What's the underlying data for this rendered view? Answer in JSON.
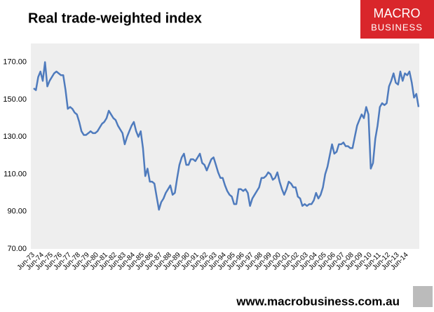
{
  "chart_data": {
    "type": "line",
    "title": "Real trade-weighted index",
    "categories": [
      "Jun-73",
      null,
      null,
      null,
      "Jun-74",
      null,
      null,
      null,
      "Jun-75",
      null,
      null,
      null,
      "Jun-76",
      null,
      null,
      null,
      "Jun-77",
      null,
      null,
      null,
      "Jun-78",
      null,
      null,
      null,
      "Jun-79",
      null,
      null,
      null,
      "Jun-80",
      null,
      null,
      null,
      "Jun-81",
      null,
      null,
      null,
      "Jun-82",
      null,
      null,
      null,
      "Jun-83",
      null,
      null,
      null,
      "Jun-84",
      null,
      null,
      null,
      "Jun-85",
      null,
      null,
      null,
      "Jun-86",
      null,
      null,
      null,
      "Jun-87",
      null,
      null,
      null,
      "Jun-88",
      null,
      null,
      null,
      "Jun-89",
      null,
      null,
      null,
      "Jun-90",
      null,
      null,
      null,
      "Jun-91",
      null,
      null,
      null,
      "Jun-92",
      null,
      null,
      null,
      "Jun-93",
      null,
      null,
      null,
      "Jun-94",
      null,
      null,
      null,
      "Jun-95",
      null,
      null,
      null,
      "Jun-96",
      null,
      null,
      null,
      "Jun-97",
      null,
      null,
      null,
      "Jun-98",
      null,
      null,
      null,
      "Jun-99",
      null,
      null,
      null,
      "Jun-00",
      null,
      null,
      null,
      "Jun-01",
      null,
      null,
      null,
      "Jun-02",
      null,
      null,
      null,
      "Jun-03",
      null,
      null,
      null,
      "Jun-04",
      null,
      null,
      null,
      "Jun-05",
      null,
      null,
      null,
      "Jun-06",
      null,
      null,
      null,
      "Jun-07",
      null,
      null,
      null,
      "Jun-08",
      null,
      null,
      null,
      "Jun-09",
      null,
      null,
      null,
      "Jun-10",
      null,
      null,
      null,
      "Jun-11",
      null,
      null,
      null,
      "Jun-12",
      null,
      null,
      null,
      "Jun-13",
      null,
      null,
      null,
      "Jun-14",
      null,
      null,
      null,
      null,
      null
    ],
    "values": [
      156,
      155,
      162,
      165,
      160,
      170,
      157,
      160,
      162,
      164,
      165,
      164,
      163,
      163,
      155,
      145,
      146,
      145,
      143,
      142,
      138,
      133,
      131,
      131,
      132,
      133,
      132,
      132,
      133,
      135,
      137,
      138,
      140,
      144,
      142,
      140,
      139,
      136,
      134,
      132,
      126,
      130,
      133,
      136,
      138,
      133,
      130,
      133,
      124,
      109,
      113,
      106,
      106,
      105,
      98,
      91,
      95,
      97,
      100,
      102,
      104,
      99,
      100,
      108,
      115,
      119,
      121,
      115,
      115,
      118,
      118,
      117,
      119,
      121,
      116,
      115,
      112,
      115,
      118,
      119,
      115,
      111,
      108,
      108,
      104,
      101,
      99,
      98,
      94,
      94,
      102,
      102,
      101,
      102,
      100,
      93,
      97,
      99,
      101,
      103,
      108,
      108,
      109,
      111,
      110,
      107,
      108,
      111,
      106,
      102,
      99,
      102,
      106,
      105,
      103,
      103,
      98,
      97,
      93,
      94,
      93,
      94,
      94,
      96,
      100,
      97,
      99,
      103,
      110,
      114,
      120,
      126,
      121,
      122,
      126,
      126,
      127,
      125,
      125,
      124,
      124,
      130,
      136,
      139,
      142,
      140,
      146,
      142,
      113,
      116,
      129,
      136,
      146,
      148,
      147,
      148,
      157,
      160,
      164,
      159,
      158,
      165,
      160,
      164,
      163,
      165,
      159,
      151,
      153,
      146
    ],
    "color": "#4f7bbd",
    "ylim": [
      70,
      180
    ],
    "yticks": [
      {
        "value": 70,
        "label": "70.00"
      },
      {
        "value": 90,
        "label": "90.00"
      },
      {
        "value": 110,
        "label": "110.00"
      },
      {
        "value": 130,
        "label": "130.00"
      },
      {
        "value": 150,
        "label": "150.00"
      },
      {
        "value": 170,
        "label": "170.00"
      }
    ],
    "grid": false
  },
  "logo": {
    "line1": "MACRO",
    "line2": "BUSINESS"
  },
  "footer": "www.macrobusiness.com.au"
}
